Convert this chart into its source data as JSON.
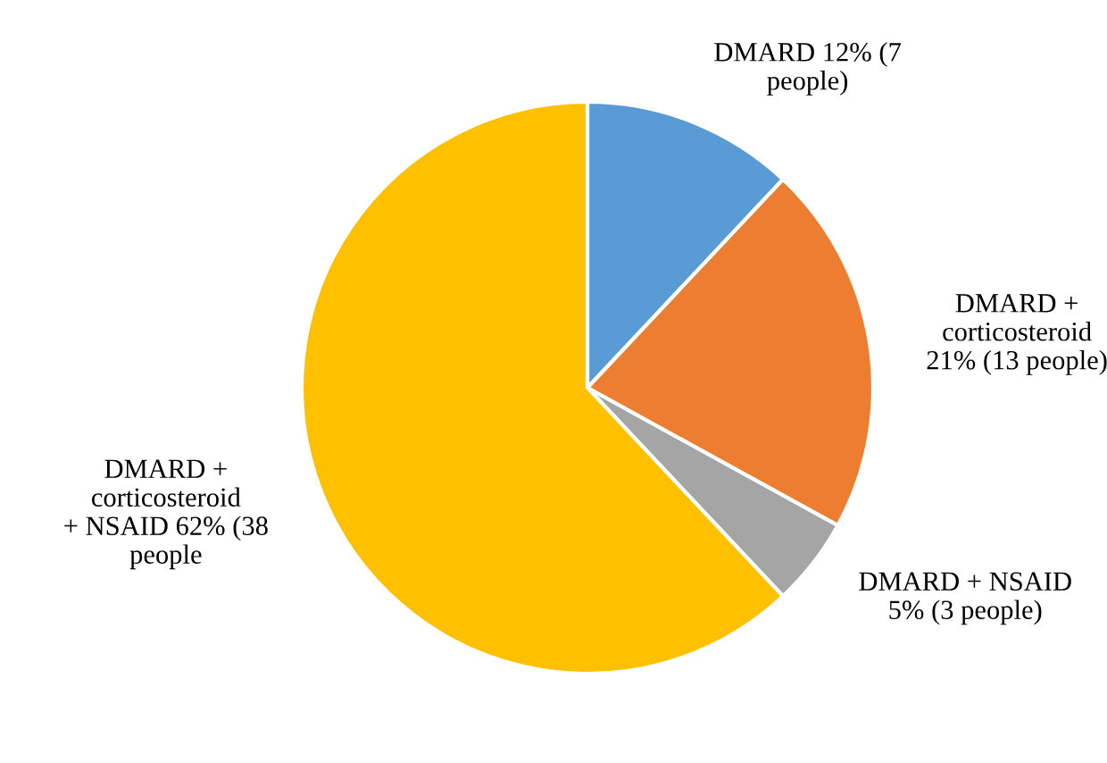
{
  "chart_data": {
    "type": "pie",
    "categories": [
      "DMARD",
      "DMARD + corticosteroid",
      "DMARD + NSAID",
      "DMARD + corticosteroid + NSAID"
    ],
    "values": [
      12,
      21,
      5,
      62
    ],
    "colors": [
      "#5b9bd5",
      "#ed7d31",
      "#a5a5a5",
      "#ffc000"
    ],
    "value_labels": [
      "12% (7 people)",
      "21% (13 people)",
      "5% (3 people)",
      "62% (38 people"
    ],
    "legend": false
  }
}
